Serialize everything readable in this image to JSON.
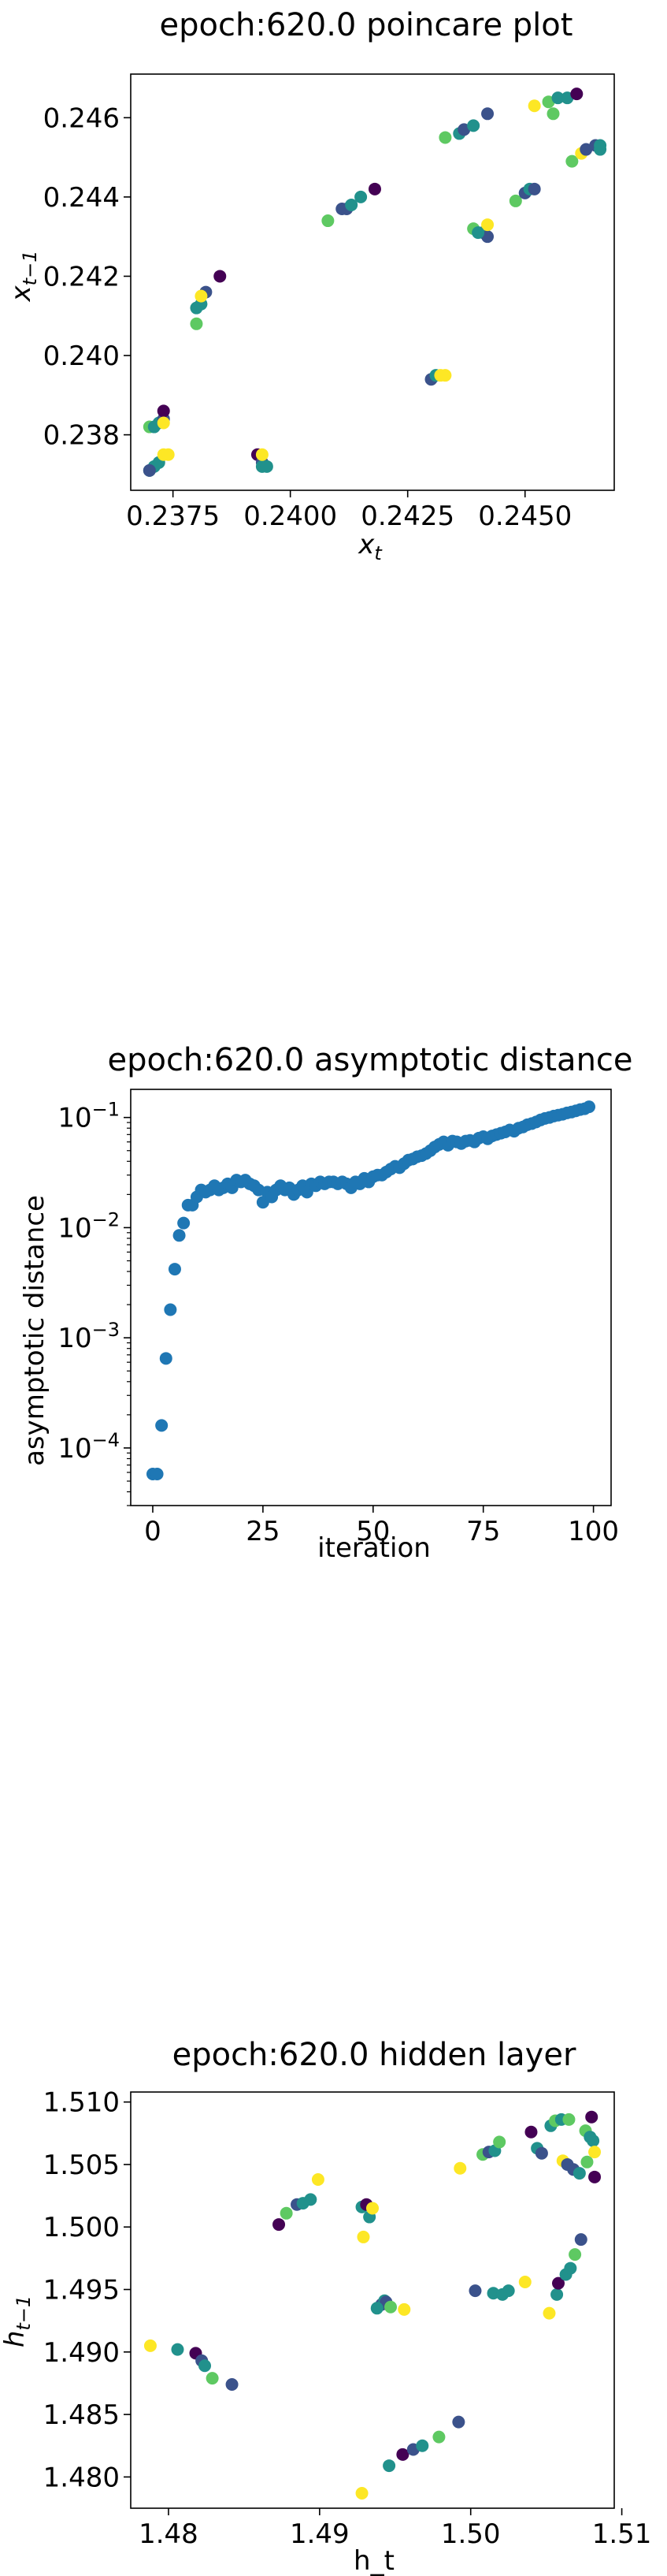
{
  "chart_data": [
    {
      "type": "scatter",
      "title": "epoch:620.0 poincare plot",
      "xlabel": "x_t",
      "ylabel": "x_t−1",
      "xlim": [
        0.2366,
        0.2469
      ],
      "ylim": [
        0.2366,
        0.2471
      ],
      "xticks": [
        0.2375,
        0.24,
        0.2425,
        0.245
      ],
      "xtick_labels": [
        "0.2375",
        "0.2400",
        "0.2425",
        "0.2450"
      ],
      "yticks": [
        0.238,
        0.24,
        0.242,
        0.244,
        0.246
      ],
      "ytick_labels": [
        "0.238",
        "0.240",
        "0.242",
        "0.244",
        "0.246"
      ],
      "colormap": [
        "#440154",
        "#3b528b",
        "#21918c",
        "#5ec962",
        "#fde725"
      ],
      "points": [
        [
          0.237,
          0.2371,
          0.6
        ],
        [
          0.2371,
          0.2372,
          0.5
        ],
        [
          0.2372,
          0.2373,
          0.4
        ],
        [
          0.2373,
          0.2375,
          0.9
        ],
        [
          0.2374,
          0.2375,
          1.0
        ],
        [
          0.237,
          0.2371,
          0.3
        ],
        [
          0.237,
          0.2382,
          0.7
        ],
        [
          0.2371,
          0.2382,
          0.6
        ],
        [
          0.2372,
          0.2383,
          0.4
        ],
        [
          0.2373,
          0.2384,
          0.3
        ],
        [
          0.2373,
          0.2386,
          0.1
        ],
        [
          0.2373,
          0.2383,
          0.9
        ],
        [
          0.238,
          0.2408,
          0.7
        ],
        [
          0.238,
          0.2412,
          0.5
        ],
        [
          0.2381,
          0.2413,
          0.4
        ],
        [
          0.2382,
          0.2416,
          0.2
        ],
        [
          0.2385,
          0.242,
          0.1
        ],
        [
          0.2381,
          0.2415,
          0.9
        ],
        [
          0.2393,
          0.2375,
          0.1
        ],
        [
          0.2394,
          0.2373,
          0.3
        ],
        [
          0.2394,
          0.2372,
          0.5
        ],
        [
          0.2395,
          0.2372,
          0.6
        ],
        [
          0.2394,
          0.2375,
          1.0
        ],
        [
          0.2408,
          0.2434,
          0.7
        ],
        [
          0.2411,
          0.2437,
          0.3
        ],
        [
          0.2412,
          0.2437,
          0.2
        ],
        [
          0.2413,
          0.2438,
          0.4
        ],
        [
          0.2415,
          0.244,
          0.6
        ],
        [
          0.2418,
          0.2442,
          0.1
        ],
        [
          0.243,
          0.2394,
          0.2
        ],
        [
          0.2431,
          0.2395,
          0.4
        ],
        [
          0.2432,
          0.2395,
          1.0
        ],
        [
          0.2433,
          0.2395,
          0.9
        ],
        [
          0.2433,
          0.2455,
          0.7
        ],
        [
          0.2436,
          0.2456,
          0.4
        ],
        [
          0.2437,
          0.2457,
          0.3
        ],
        [
          0.2439,
          0.2458,
          0.5
        ],
        [
          0.2442,
          0.2461,
          0.2
        ],
        [
          0.2439,
          0.2432,
          0.7
        ],
        [
          0.2441,
          0.2431,
          0.5
        ],
        [
          0.2442,
          0.243,
          0.2
        ],
        [
          0.2442,
          0.2433,
          1.0
        ],
        [
          0.244,
          0.2431,
          0.4
        ],
        [
          0.2448,
          0.2439,
          0.7
        ],
        [
          0.245,
          0.2441,
          0.3
        ],
        [
          0.2451,
          0.2442,
          0.4
        ],
        [
          0.2452,
          0.2442,
          0.2
        ],
        [
          0.2452,
          0.2463,
          1.0
        ],
        [
          0.2455,
          0.2464,
          0.7
        ],
        [
          0.2457,
          0.2465,
          0.5
        ],
        [
          0.2459,
          0.2465,
          0.4
        ],
        [
          0.2461,
          0.2466,
          0.1
        ],
        [
          0.2456,
          0.2461,
          0.8
        ],
        [
          0.246,
          0.2449,
          0.8
        ],
        [
          0.2462,
          0.2451,
          1.0
        ],
        [
          0.2463,
          0.2452,
          0.3
        ],
        [
          0.2465,
          0.2453,
          0.2
        ],
        [
          0.2466,
          0.2452,
          0.5
        ],
        [
          0.2466,
          0.2453,
          0.6
        ]
      ]
    },
    {
      "type": "scatter",
      "title": "epoch:620.0 asymptotic distance",
      "xlabel": "iteration",
      "ylabel": "asymptotic distance",
      "scale_y": "log",
      "xlim": [
        -5,
        104
      ],
      "ylim": [
        3e-05,
        0.18
      ],
      "xticks": [
        0,
        25,
        50,
        75,
        100
      ],
      "xtick_labels": [
        "0",
        "25",
        "50",
        "75",
        "100"
      ],
      "yticks": [
        0.0001,
        0.001,
        0.01,
        0.1
      ],
      "ytick_labels": [
        "10−4",
        "10−3",
        "10−2",
        "10−1"
      ],
      "color": "#1f77b4",
      "points": [
        [
          0,
          5.8e-05
        ],
        [
          1,
          5.8e-05
        ],
        [
          2,
          0.00016
        ],
        [
          3,
          0.00065
        ],
        [
          4,
          0.0018
        ],
        [
          5,
          0.0042
        ],
        [
          6,
          0.0085
        ],
        [
          7,
          0.011
        ],
        [
          8,
          0.016
        ],
        [
          9,
          0.016
        ],
        [
          10,
          0.019
        ],
        [
          11,
          0.022
        ],
        [
          12,
          0.021
        ],
        [
          13,
          0.022
        ],
        [
          14,
          0.024
        ],
        [
          15,
          0.022
        ],
        [
          16,
          0.023
        ],
        [
          17,
          0.025
        ],
        [
          18,
          0.023
        ],
        [
          19,
          0.027
        ],
        [
          20,
          0.026
        ],
        [
          21,
          0.027
        ],
        [
          22,
          0.025
        ],
        [
          23,
          0.024
        ],
        [
          24,
          0.022
        ],
        [
          25,
          0.017
        ],
        [
          26,
          0.021
        ],
        [
          27,
          0.019
        ],
        [
          28,
          0.022
        ],
        [
          29,
          0.024
        ],
        [
          30,
          0.022
        ],
        [
          31,
          0.023
        ],
        [
          32,
          0.02
        ],
        [
          33,
          0.022
        ],
        [
          34,
          0.024
        ],
        [
          35,
          0.021
        ],
        [
          36,
          0.025
        ],
        [
          37,
          0.024
        ],
        [
          38,
          0.026
        ],
        [
          39,
          0.025
        ],
        [
          40,
          0.026
        ],
        [
          41,
          0.026
        ],
        [
          42,
          0.025
        ],
        [
          43,
          0.026
        ],
        [
          44,
          0.025
        ],
        [
          45,
          0.023
        ],
        [
          46,
          0.026
        ],
        [
          47,
          0.025
        ],
        [
          48,
          0.028
        ],
        [
          49,
          0.026
        ],
        [
          50,
          0.029
        ],
        [
          51,
          0.03
        ],
        [
          52,
          0.03
        ],
        [
          53,
          0.032
        ],
        [
          54,
          0.034
        ],
        [
          55,
          0.036
        ],
        [
          56,
          0.035
        ],
        [
          57,
          0.038
        ],
        [
          58,
          0.041
        ],
        [
          59,
          0.042
        ],
        [
          60,
          0.044
        ],
        [
          61,
          0.045
        ],
        [
          62,
          0.047
        ],
        [
          63,
          0.05
        ],
        [
          64,
          0.054
        ],
        [
          65,
          0.057
        ],
        [
          66,
          0.06
        ],
        [
          67,
          0.056
        ],
        [
          68,
          0.061
        ],
        [
          69,
          0.06
        ],
        [
          70,
          0.058
        ],
        [
          71,
          0.061
        ],
        [
          72,
          0.062
        ],
        [
          73,
          0.06
        ],
        [
          74,
          0.065
        ],
        [
          75,
          0.067
        ],
        [
          76,
          0.064
        ],
        [
          77,
          0.068
        ],
        [
          78,
          0.07
        ],
        [
          79,
          0.072
        ],
        [
          80,
          0.074
        ],
        [
          81,
          0.077
        ],
        [
          82,
          0.075
        ],
        [
          83,
          0.08
        ],
        [
          84,
          0.082
        ],
        [
          85,
          0.086
        ],
        [
          86,
          0.088
        ],
        [
          87,
          0.091
        ],
        [
          88,
          0.095
        ],
        [
          89,
          0.098
        ],
        [
          90,
          0.1
        ],
        [
          91,
          0.103
        ],
        [
          92,
          0.105
        ],
        [
          93,
          0.107
        ],
        [
          94,
          0.11
        ],
        [
          95,
          0.112
        ],
        [
          96,
          0.115
        ],
        [
          97,
          0.118
        ],
        [
          98,
          0.12
        ],
        [
          99,
          0.125
        ]
      ]
    },
    {
      "type": "scatter",
      "title": "epoch:620.0 hidden layer",
      "xlabel": "h_t",
      "ylabel": "h_t−1",
      "xlim": [
        1.4775,
        1.5095
      ],
      "ylim": [
        1.4775,
        1.5108
      ],
      "xticks": [
        1.48,
        1.49,
        1.5,
        1.51
      ],
      "xtick_labels": [
        "1.48",
        "1.49",
        "1.50",
        "1.51"
      ],
      "yticks": [
        1.48,
        1.485,
        1.49,
        1.495,
        1.5,
        1.505,
        1.51
      ],
      "ytick_labels": [
        "1.480",
        "1.485",
        "1.490",
        "1.495",
        "1.500",
        "1.505",
        "1.510"
      ],
      "colormap": [
        "#440154",
        "#3b528b",
        "#21918c",
        "#5ec962",
        "#fde725"
      ],
      "points": [
        [
          1.4788,
          1.4905,
          1.0
        ],
        [
          1.4806,
          1.4902,
          0.6
        ],
        [
          1.4818,
          1.4899,
          0.1
        ],
        [
          1.4822,
          1.4893,
          0.3
        ],
        [
          1.4824,
          1.4889,
          0.5
        ],
        [
          1.4829,
          1.4879,
          0.7
        ],
        [
          1.4842,
          1.4874,
          0.2
        ],
        [
          1.4873,
          1.5002,
          0.1
        ],
        [
          1.4878,
          1.5011,
          0.7
        ],
        [
          1.4885,
          1.5018,
          0.3
        ],
        [
          1.4889,
          1.5019,
          0.5
        ],
        [
          1.4894,
          1.5022,
          0.4
        ],
        [
          1.4899,
          1.5038,
          1.0
        ],
        [
          1.4928,
          1.5016,
          0.6
        ],
        [
          1.4931,
          1.5018,
          0.1
        ],
        [
          1.4933,
          1.5008,
          0.5
        ],
        [
          1.4935,
          1.5015,
          0.9
        ],
        [
          1.4929,
          1.4992,
          1.0
        ],
        [
          1.4941,
          1.4938,
          0.2
        ],
        [
          1.4943,
          1.4941,
          0.5
        ],
        [
          1.4944,
          1.494,
          0.3
        ],
        [
          1.4947,
          1.4936,
          0.7
        ],
        [
          1.4956,
          1.4934,
          1.0
        ],
        [
          1.4938,
          1.4935,
          0.6
        ],
        [
          1.4928,
          1.4787,
          1.0
        ],
        [
          1.4946,
          1.4809,
          0.6
        ],
        [
          1.4955,
          1.4818,
          0.1
        ],
        [
          1.4962,
          1.4822,
          0.3
        ],
        [
          1.4968,
          1.4825,
          0.5
        ],
        [
          1.4979,
          1.4832,
          0.7
        ],
        [
          1.4992,
          1.4844,
          0.2
        ],
        [
          1.4993,
          1.5047,
          1.0
        ],
        [
          1.5008,
          1.5058,
          0.7
        ],
        [
          1.5012,
          1.506,
          0.2
        ],
        [
          1.5016,
          1.5061,
          0.4
        ],
        [
          1.5019,
          1.5068,
          0.8
        ],
        [
          1.5003,
          1.4949,
          0.2
        ],
        [
          1.5015,
          1.4947,
          0.6
        ],
        [
          1.5021,
          1.4946,
          0.4
        ],
        [
          1.5025,
          1.4949,
          0.5
        ],
        [
          1.5036,
          1.4956,
          0.9
        ],
        [
          1.504,
          1.5076,
          0.1
        ],
        [
          1.5044,
          1.5063,
          0.4
        ],
        [
          1.5047,
          1.5059,
          0.3
        ],
        [
          1.5053,
          1.5081,
          0.6
        ],
        [
          1.5056,
          1.5085,
          0.7
        ],
        [
          1.506,
          1.5086,
          0.4
        ],
        [
          1.5065,
          1.5086,
          0.8
        ],
        [
          1.5061,
          1.5053,
          0.9
        ],
        [
          1.5064,
          1.505,
          0.3
        ],
        [
          1.5068,
          1.5046,
          0.2
        ],
        [
          1.5072,
          1.5043,
          0.5
        ],
        [
          1.5077,
          1.5052,
          0.7
        ],
        [
          1.5082,
          1.504,
          0.1
        ],
        [
          1.5076,
          1.5077,
          0.7
        ],
        [
          1.5079,
          1.5072,
          0.4
        ],
        [
          1.5081,
          1.5069,
          0.6
        ],
        [
          1.5082,
          1.506,
          1.0
        ],
        [
          1.508,
          1.5088,
          0.1
        ],
        [
          1.5052,
          1.4931,
          1.0
        ],
        [
          1.5057,
          1.4946,
          0.4
        ],
        [
          1.5058,
          1.4955,
          0.1
        ],
        [
          1.5063,
          1.4962,
          0.5
        ],
        [
          1.5066,
          1.4967,
          0.6
        ],
        [
          1.5069,
          1.4978,
          0.7
        ],
        [
          1.5073,
          1.499,
          0.2
        ]
      ]
    }
  ]
}
